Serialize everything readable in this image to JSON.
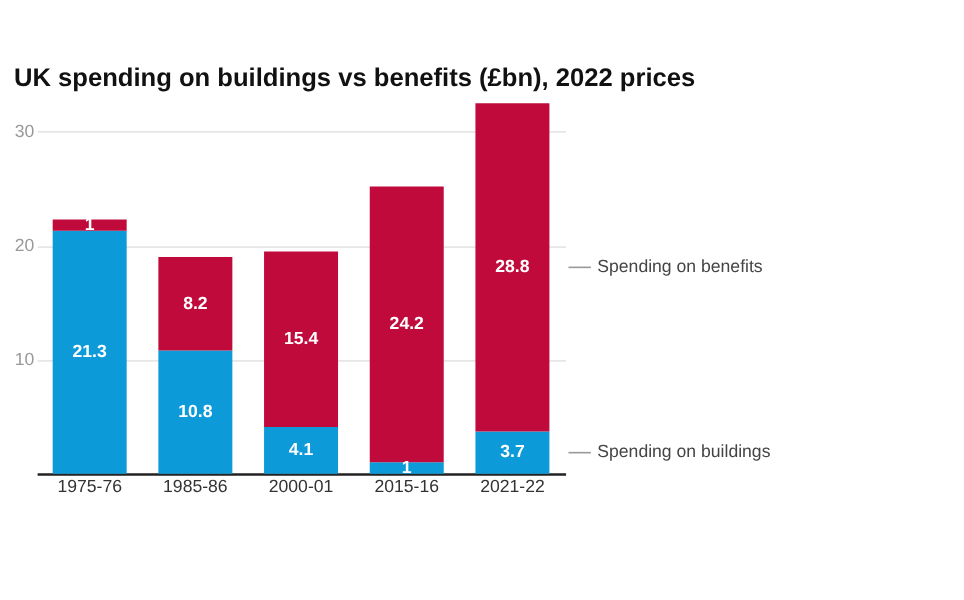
{
  "chart_data": {
    "type": "bar",
    "title": "UK spending on buildings vs benefits (£bn), 2022 prices",
    "categories": [
      "1975-76",
      "1985-86",
      "2000-01",
      "2015-16",
      "2021-22"
    ],
    "stacked": true,
    "series": [
      {
        "name": "Spending on buildings",
        "color": "#0d9ad9",
        "values": [
          21.3,
          10.8,
          4.1,
          1,
          3.7
        ]
      },
      {
        "name": "Spending on benefits",
        "color": "#c00a3c",
        "values": [
          1,
          8.2,
          15.4,
          24.2,
          28.8
        ]
      }
    ],
    "ylim": [
      0,
      33
    ],
    "yticks": [
      10,
      20,
      30
    ],
    "grid": "y",
    "data_labels": true
  }
}
